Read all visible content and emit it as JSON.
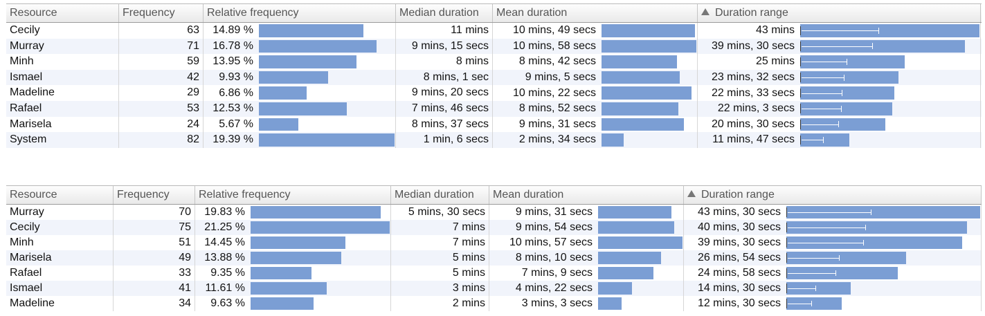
{
  "headers": {
    "resource": "Resource",
    "frequency": "Frequency",
    "relative_frequency": "Relative frequency",
    "median_duration": "Median duration",
    "mean_duration": "Mean duration",
    "duration_range": "Duration range"
  },
  "accent_color": "#7b9ed4",
  "sort_indicator": "triangle-up-icon",
  "tables": [
    {
      "rows": [
        {
          "resource": "Cecily",
          "frequency": "63",
          "rel": "14.89 %",
          "rel_pct": 14.89,
          "median": "11 mins",
          "mean": "10 mins, 49 secs",
          "mean_secs": 649,
          "range": "43 mins",
          "range_secs": 2580
        },
        {
          "resource": "Murray",
          "frequency": "71",
          "rel": "16.78 %",
          "rel_pct": 16.78,
          "median": "9 mins, 15 secs",
          "mean": "10 mins, 58 secs",
          "mean_secs": 658,
          "range": "39 mins, 30 secs",
          "range_secs": 2370
        },
        {
          "resource": "Minh",
          "frequency": "59",
          "rel": "13.95 %",
          "rel_pct": 13.95,
          "median": "8 mins",
          "mean": "8 mins, 42 secs",
          "mean_secs": 522,
          "range": "25 mins",
          "range_secs": 1500
        },
        {
          "resource": "Ismael",
          "frequency": "42",
          "rel": "9.93 %",
          "rel_pct": 9.93,
          "median": "8 mins, 1 sec",
          "mean": "9 mins, 5 secs",
          "mean_secs": 545,
          "range": "23 mins, 32 secs",
          "range_secs": 1412
        },
        {
          "resource": "Madeline",
          "frequency": "29",
          "rel": "6.86 %",
          "rel_pct": 6.86,
          "median": "9 mins, 20 secs",
          "mean": "10 mins, 22 secs",
          "mean_secs": 622,
          "range": "22 mins, 33 secs",
          "range_secs": 1353
        },
        {
          "resource": "Rafael",
          "frequency": "53",
          "rel": "12.53 %",
          "rel_pct": 12.53,
          "median": "7 mins, 46 secs",
          "mean": "8 mins, 52 secs",
          "mean_secs": 532,
          "range": "22 mins, 3 secs",
          "range_secs": 1323
        },
        {
          "resource": "Marisela",
          "frequency": "24",
          "rel": "5.67 %",
          "rel_pct": 5.67,
          "median": "8 mins, 37 secs",
          "mean": "9 mins, 31 secs",
          "mean_secs": 571,
          "range": "20 mins, 30 secs",
          "range_secs": 1230
        },
        {
          "resource": "System",
          "frequency": "82",
          "rel": "19.39 %",
          "rel_pct": 19.39,
          "median": "1 min, 6 secs",
          "mean": "2 mins, 34 secs",
          "mean_secs": 154,
          "range": "11 mins, 47 secs",
          "range_secs": 707
        }
      ]
    },
    {
      "rows": [
        {
          "resource": "Murray",
          "frequency": "70",
          "rel": "19.83 %",
          "rel_pct": 19.83,
          "median": "5 mins, 30 secs",
          "mean": "9 mins, 31 secs",
          "mean_secs": 571,
          "range": "43 mins, 30 secs",
          "range_secs": 2610
        },
        {
          "resource": "Cecily",
          "frequency": "75",
          "rel": "21.25 %",
          "rel_pct": 21.25,
          "median": "7 mins",
          "mean": "9 mins, 54 secs",
          "mean_secs": 594,
          "range": "40 mins, 30 secs",
          "range_secs": 2430
        },
        {
          "resource": "Minh",
          "frequency": "51",
          "rel": "14.45 %",
          "rel_pct": 14.45,
          "median": "7 mins",
          "mean": "10 mins, 57 secs",
          "mean_secs": 657,
          "range": "39 mins, 30 secs",
          "range_secs": 2370
        },
        {
          "resource": "Marisela",
          "frequency": "49",
          "rel": "13.88 %",
          "rel_pct": 13.88,
          "median": "5 mins",
          "mean": "8 mins, 10 secs",
          "mean_secs": 490,
          "range": "26 mins, 54 secs",
          "range_secs": 1614
        },
        {
          "resource": "Rafael",
          "frequency": "33",
          "rel": "9.35 %",
          "rel_pct": 9.35,
          "median": "5 mins",
          "mean": "7 mins, 9 secs",
          "mean_secs": 429,
          "range": "24 mins, 58 secs",
          "range_secs": 1498
        },
        {
          "resource": "Ismael",
          "frequency": "41",
          "rel": "11.61 %",
          "rel_pct": 11.61,
          "median": "3 mins",
          "mean": "4 mins, 22 secs",
          "mean_secs": 262,
          "range": "14 mins, 30 secs",
          "range_secs": 870
        },
        {
          "resource": "Madeline",
          "frequency": "34",
          "rel": "9.63 %",
          "rel_pct": 9.63,
          "median": "2 mins",
          "mean": "3 mins, 3 secs",
          "mean_secs": 183,
          "range": "12 mins, 30 secs",
          "range_secs": 750
        }
      ]
    }
  ]
}
